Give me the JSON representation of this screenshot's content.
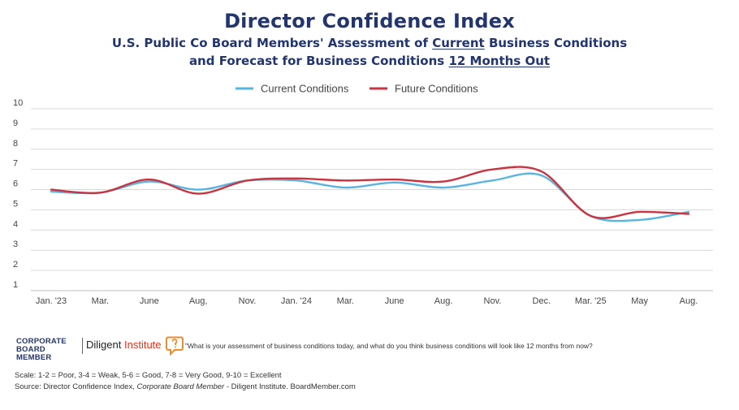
{
  "title": "Director Confidence Index",
  "subtitle": {
    "line1_pre": "U.S. Public Co Board Members' Assessment of ",
    "line1_underlined": "Current",
    "line1_post": " Business Conditions",
    "line2_pre": "and Forecast for Business Conditions ",
    "line2_underlined": "12 Months Out"
  },
  "colors": {
    "title": "#22356f",
    "current": "#5ab4e2",
    "future": "#c8343f",
    "grid": "#d9d9d9",
    "brand_red": "#e0331d",
    "icon_orange": "#ef8b2a"
  },
  "chart_data": {
    "type": "line",
    "title": "Director Confidence Index",
    "xlabel": "",
    "ylabel": "",
    "ylim": [
      1,
      10
    ],
    "yticks": [
      1,
      2,
      3,
      4,
      5,
      6,
      7,
      8,
      9,
      10
    ],
    "grid": true,
    "legend_position": "top-center",
    "categories": [
      "Jan. '23",
      "Mar.",
      "June",
      "Aug,",
      "Nov.",
      "Jan. '24",
      "Mar.",
      "June",
      "Aug.",
      "Nov.",
      "Dec.",
      "Mar. '25",
      "May",
      "Aug."
    ],
    "series": [
      {
        "name": "Current Conditions",
        "color": "#5ab4e2",
        "values": [
          5.9,
          5.85,
          6.4,
          6.0,
          6.45,
          6.45,
          6.1,
          6.35,
          6.1,
          6.45,
          6.7,
          4.7,
          4.5,
          4.9
        ]
      },
      {
        "name": "Future Conditions",
        "color": "#c8343f",
        "values": [
          6.0,
          5.85,
          6.5,
          5.8,
          6.45,
          6.55,
          6.45,
          6.5,
          6.4,
          7.0,
          6.9,
          4.7,
          4.9,
          4.8
        ]
      }
    ]
  },
  "footer": {
    "logo_cbm_line1": "CORPORATE",
    "logo_cbm_line2": "BOARD MEMBER",
    "logo_diligent": "Diligent",
    "logo_institute": "Institute",
    "question": "\"What is your assessment of business conditions today, and what do you think business conditions will look like 12 months from now?",
    "scale": "Scale: 1-2 = Poor, 3-4 = Weak, 5-6 = Good, 7-8 = Very Good, 9-10 = Excellent",
    "source_pre": "Source: Director Confidence Index, ",
    "source_italic": "Corporate Board Member",
    "source_post": " - Diligent Institute. BoardMember.com"
  }
}
